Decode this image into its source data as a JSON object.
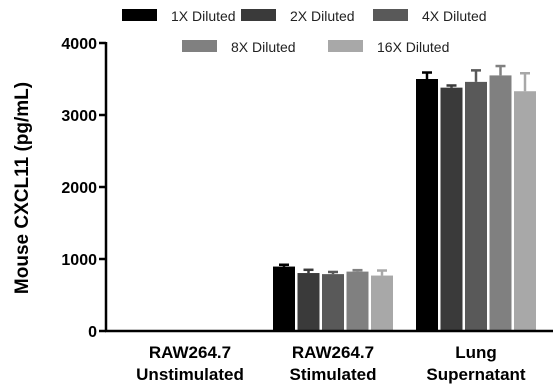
{
  "chart_data": {
    "type": "bar",
    "title": "",
    "xlabel": "",
    "ylabel": "Mouse CXCL11 (pg/mL)",
    "ylim": [
      0,
      4000
    ],
    "yticks": [
      "0",
      "1000",
      "2000",
      "3000",
      "4000"
    ],
    "ytick_values": [
      0,
      1000,
      2000,
      3000,
      4000
    ],
    "categories": [
      [
        "RAW264.7",
        "Unstimulated"
      ],
      [
        "RAW264.7",
        "Stimulated"
      ],
      [
        "Lung",
        "Supernatant"
      ]
    ],
    "legend_position": "top",
    "grid": false,
    "series": [
      {
        "name": "1X Diluted",
        "color": "#000000",
        "values": [
          10,
          895,
          3500
        ],
        "errors": [
          0,
          25,
          90
        ]
      },
      {
        "name": "2X Diluted",
        "color": "#3a3a3a",
        "values": [
          8,
          805,
          3380
        ],
        "errors": [
          0,
          45,
          30
        ]
      },
      {
        "name": "4X Diluted",
        "color": "#595959",
        "values": [
          0,
          790,
          3460
        ],
        "errors": [
          0,
          30,
          160
        ]
      },
      {
        "name": "8X Diluted",
        "color": "#808080",
        "values": [
          0,
          825,
          3550
        ],
        "errors": [
          0,
          20,
          130
        ]
      },
      {
        "name": "16X Diluted",
        "color": "#a8a8a8",
        "values": [
          0,
          770,
          3330
        ],
        "errors": [
          0,
          70,
          250
        ]
      }
    ]
  }
}
